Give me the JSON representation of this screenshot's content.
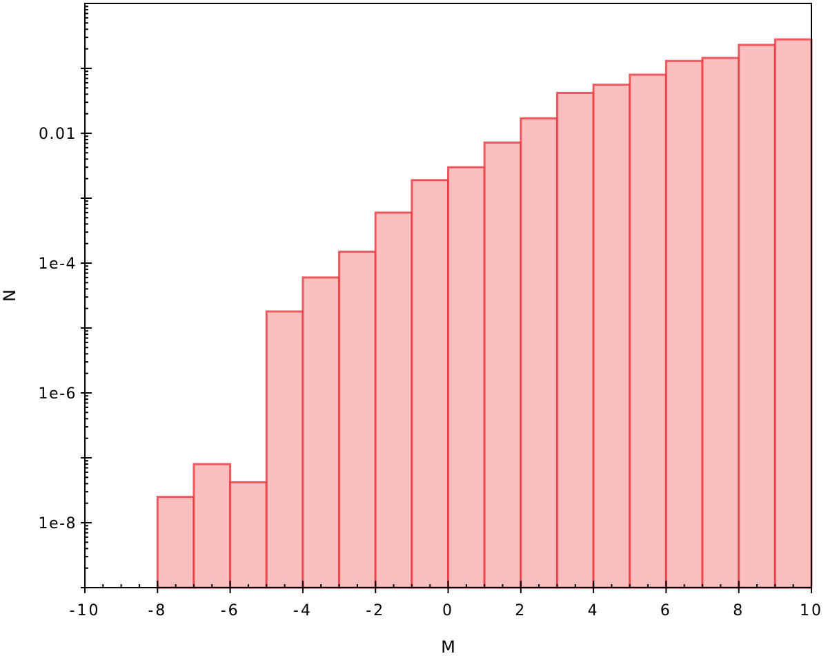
{
  "chart_data": {
    "type": "bar",
    "title": "",
    "xlabel": "M",
    "ylabel": "N",
    "xlim": [
      -10,
      10
    ],
    "ylim": [
      1e-09,
      1
    ],
    "yscale": "log",
    "grid": false,
    "legend": "none",
    "colors": {
      "fill": "#fbbfbf",
      "stroke": "#e8383f",
      "axis": "#000000"
    },
    "x_ticks": [
      -10,
      -8,
      -6,
      -4,
      -2,
      0,
      2,
      4,
      6,
      8,
      10
    ],
    "x_tick_labels": [
      "-10",
      "-8",
      "-6",
      "-4",
      "-2",
      "0",
      "2",
      "4",
      "6",
      "8",
      "10"
    ],
    "y_ticks": [
      1e-08,
      1e-06,
      0.0001,
      0.01
    ],
    "y_tick_labels": [
      "1e-8",
      "1e-6",
      "1e-4",
      "0.01"
    ],
    "bins": [
      {
        "left": -8,
        "right": -7,
        "value": 2.5e-08
      },
      {
        "left": -7,
        "right": -6,
        "value": 8e-08
      },
      {
        "left": -6,
        "right": -5,
        "value": 4.2e-08
      },
      {
        "left": -5,
        "right": -4,
        "value": 1.8e-05
      },
      {
        "left": -4,
        "right": -3,
        "value": 6e-05
      },
      {
        "left": -3,
        "right": -2,
        "value": 0.00015
      },
      {
        "left": -2,
        "right": -1,
        "value": 0.0006
      },
      {
        "left": -1,
        "right": 0,
        "value": 0.0019
      },
      {
        "left": 0,
        "right": 1,
        "value": 0.003
      },
      {
        "left": 1,
        "right": 2,
        "value": 0.0072
      },
      {
        "left": 2,
        "right": 3,
        "value": 0.017
      },
      {
        "left": 3,
        "right": 4,
        "value": 0.042
      },
      {
        "left": 4,
        "right": 5,
        "value": 0.056
      },
      {
        "left": 5,
        "right": 6,
        "value": 0.08
      },
      {
        "left": 6,
        "right": 7,
        "value": 0.13
      },
      {
        "left": 7,
        "right": 8,
        "value": 0.145
      },
      {
        "left": 8,
        "right": 9,
        "value": 0.23
      },
      {
        "left": 9,
        "right": 10,
        "value": 0.28
      }
    ]
  }
}
